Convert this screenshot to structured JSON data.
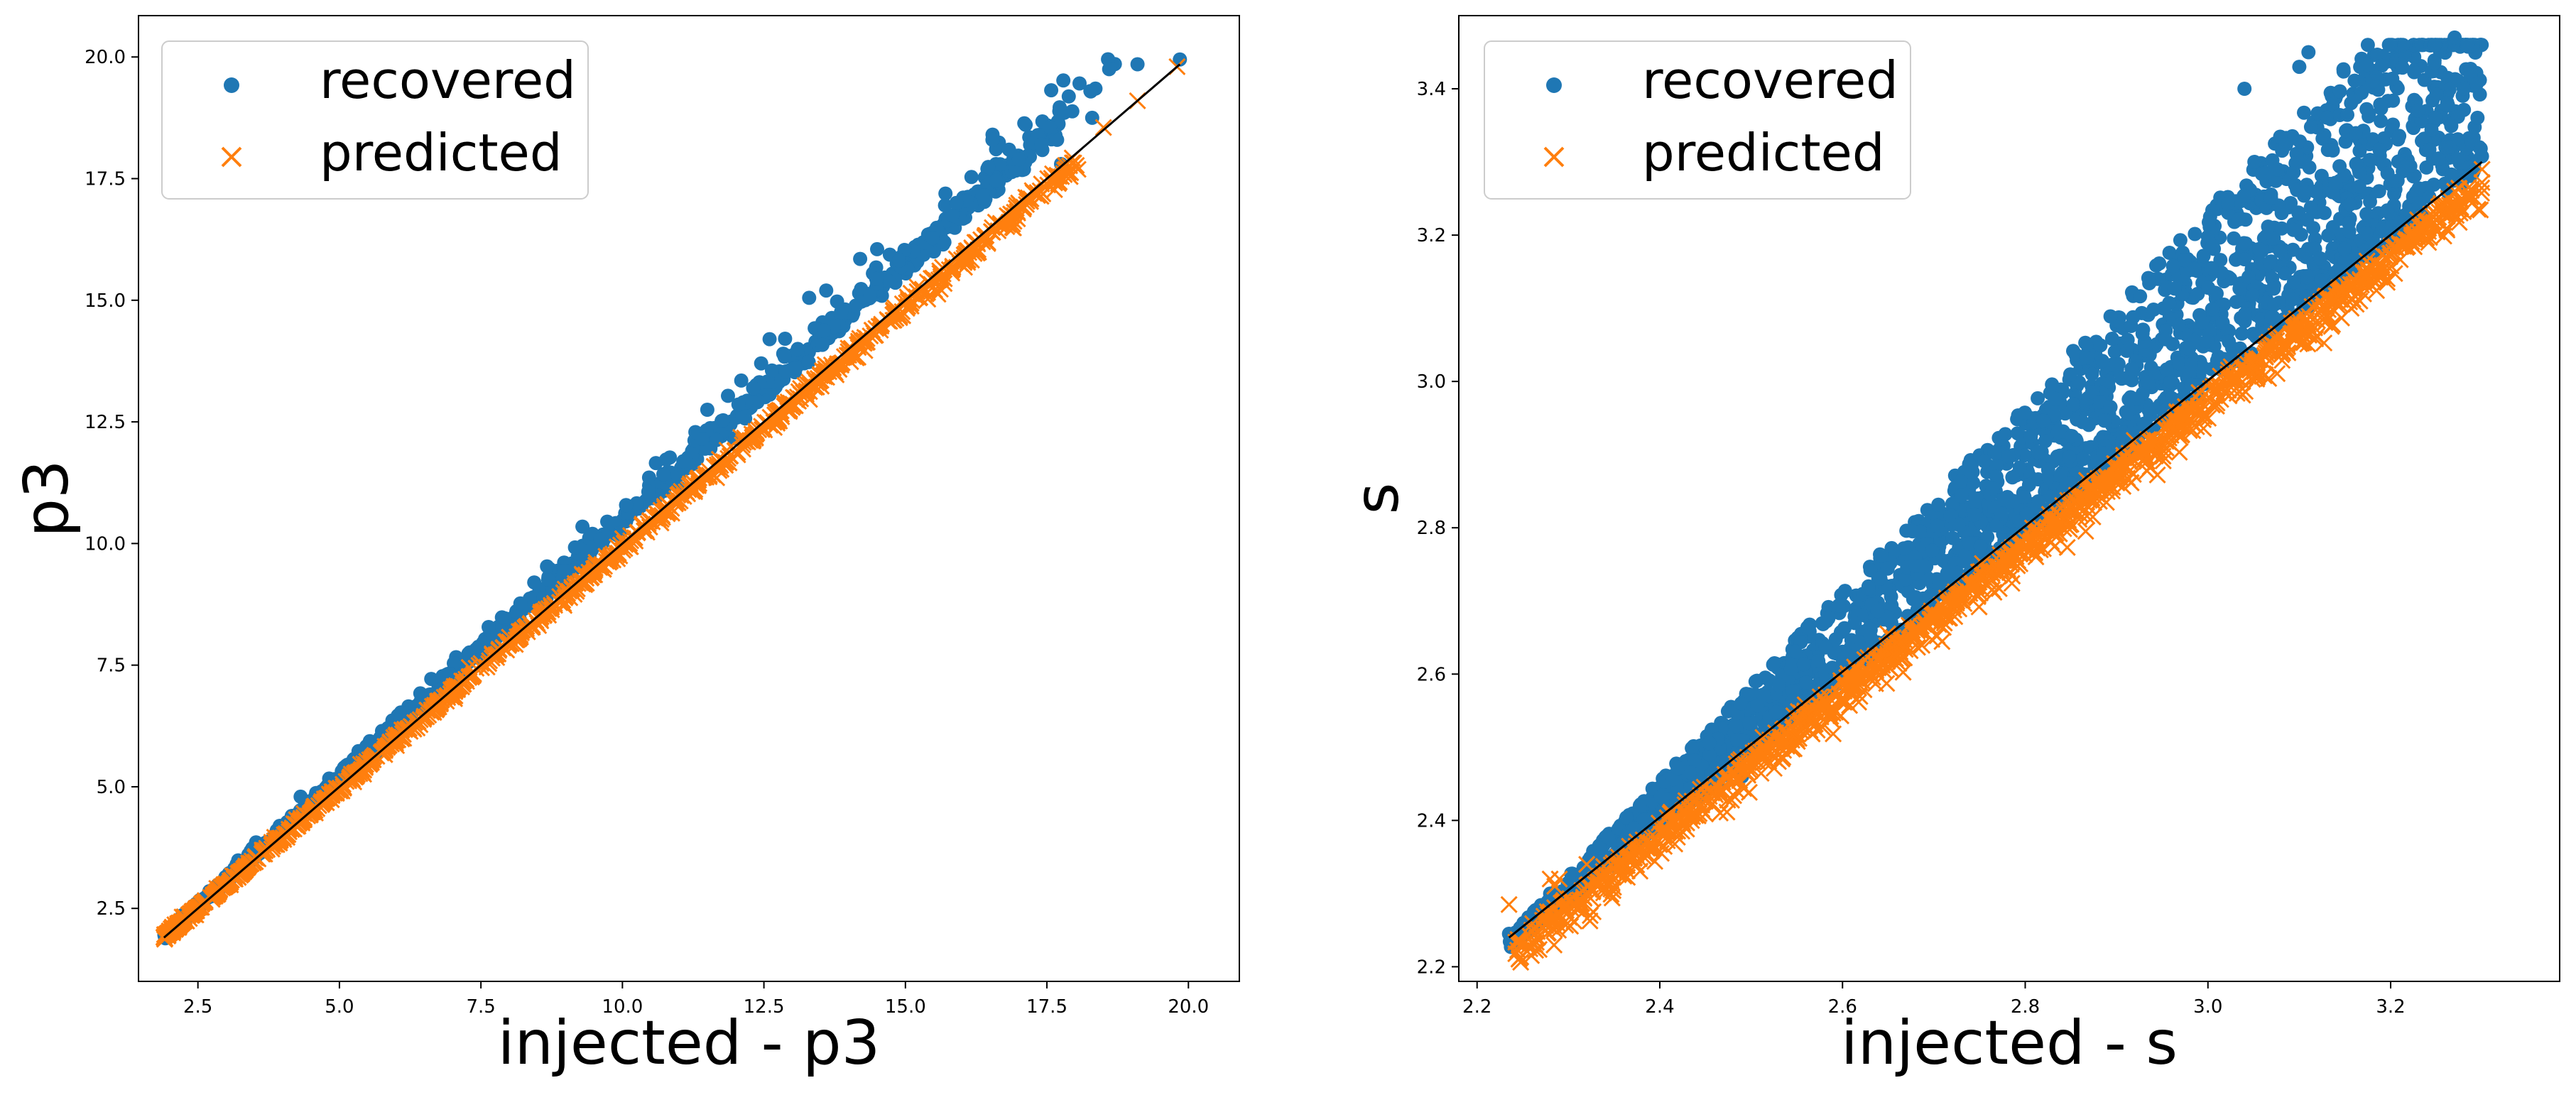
{
  "colors": {
    "recovered": "#1f77b4",
    "predicted": "#ff7f0e",
    "identity_line": "#000000",
    "axes": "#000000",
    "legend_border": "#cccccc"
  },
  "chart_data": [
    {
      "type": "scatter",
      "xlabel": "injected - p3",
      "ylabel": "p3",
      "xlim": [
        1.45,
        20.9
      ],
      "ylim": [
        1.0,
        20.85
      ],
      "xticks": [
        2.5,
        5.0,
        7.5,
        10.0,
        12.5,
        15.0,
        17.5,
        20.0
      ],
      "xtick_labels": [
        "2.5",
        "5.0",
        "7.5",
        "10.0",
        "12.5",
        "15.0",
        "17.5",
        "20.0"
      ],
      "yticks": [
        2.5,
        5.0,
        7.5,
        10.0,
        12.5,
        15.0,
        17.5,
        20.0
      ],
      "ytick_labels": [
        "2.5",
        "5.0",
        "7.5",
        "10.0",
        "12.5",
        "15.0",
        "17.5",
        "20.0"
      ],
      "grid": false,
      "legend_position": "top-left",
      "identity_line": {
        "from": [
          1.9,
          1.9
        ],
        "to": [
          19.85,
          19.85
        ]
      },
      "series": [
        {
          "name": "recovered",
          "marker": "circle",
          "trend": {
            "x_range": [
              1.9,
              19.9
            ],
            "slope": 1.055,
            "intercept": -0.08
          },
          "outliers": [
            [
              18.6,
              19.75
            ],
            [
              19.1,
              19.85
            ],
            [
              19.85,
              19.95
            ],
            [
              18.3,
              18.75
            ],
            [
              17.4,
              18.2
            ],
            [
              17.75,
              17.8
            ],
            [
              15.7,
              16.95
            ],
            [
              15.9,
              17.0
            ],
            [
              14.5,
              16.05
            ],
            [
              14.2,
              15.85
            ],
            [
              13.6,
              15.2
            ],
            [
              13.3,
              15.05
            ],
            [
              12.6,
              14.2
            ],
            [
              12.1,
              13.35
            ],
            [
              11.5,
              12.75
            ]
          ]
        },
        {
          "name": "predicted",
          "marker": "x",
          "trend": {
            "x_range": [
              1.9,
              19.85
            ],
            "slope": 0.99,
            "intercept": 0.02
          },
          "outliers": [
            [
              19.8,
              19.8
            ],
            [
              19.1,
              19.1
            ],
            [
              18.5,
              18.55
            ],
            [
              17.6,
              17.6
            ],
            [
              17.0,
              17.0
            ],
            [
              16.4,
              16.3
            ],
            [
              15.9,
              15.85
            ]
          ]
        }
      ]
    },
    {
      "type": "scatter",
      "xlabel": "injected - s",
      "ylabel": "s",
      "xlim": [
        2.18,
        3.385
      ],
      "ylim": [
        2.18,
        3.5
      ],
      "xticks": [
        2.2,
        2.4,
        2.6,
        2.8,
        3.0,
        3.2
      ],
      "xtick_labels": [
        "2.2",
        "2.4",
        "2.6",
        "2.8",
        "3.0",
        "3.2"
      ],
      "yticks": [
        2.2,
        2.4,
        2.6,
        2.8,
        3.0,
        3.2,
        3.4
      ],
      "ytick_labels": [
        "2.2",
        "2.4",
        "2.6",
        "2.8",
        "3.0",
        "3.2",
        "3.4"
      ],
      "grid": false,
      "legend_position": "top-left",
      "identity_line": {
        "from": [
          2.235,
          2.24
        ],
        "to": [
          3.3,
          3.3
        ]
      },
      "series": [
        {
          "name": "recovered",
          "marker": "circle",
          "trend": {
            "x_range": [
              2.235,
              3.3
            ],
            "upper_slope": 1.3,
            "lower_slope": 1.0
          },
          "outliers": [
            [
              3.27,
              3.47
            ],
            [
              3.2,
              3.46
            ],
            [
              3.175,
              3.46
            ],
            [
              3.11,
              3.45
            ],
            [
              3.1,
              3.43
            ],
            [
              3.04,
              3.4
            ],
            [
              3.28,
              3.4
            ],
            [
              3.18,
              3.41
            ],
            [
              3.23,
              3.37
            ],
            [
              3.26,
              3.32
            ],
            [
              2.235,
              2.245
            ],
            [
              2.28,
              2.3
            ],
            [
              2.49,
              2.46
            ],
            [
              2.6,
              2.61
            ]
          ]
        },
        {
          "name": "predicted",
          "marker": "x",
          "trend": {
            "x_range": [
              2.235,
              3.3
            ],
            "slope": 0.99,
            "intercept": 0.02
          },
          "outliers": [
            [
              2.235,
              2.285
            ],
            [
              2.28,
              2.32
            ],
            [
              2.285,
              2.31
            ],
            [
              2.29,
              2.32
            ],
            [
              2.32,
              2.34
            ],
            [
              3.25,
              3.22
            ],
            [
              3.27,
              3.26
            ],
            [
              3.3,
              3.29
            ]
          ]
        }
      ]
    }
  ]
}
